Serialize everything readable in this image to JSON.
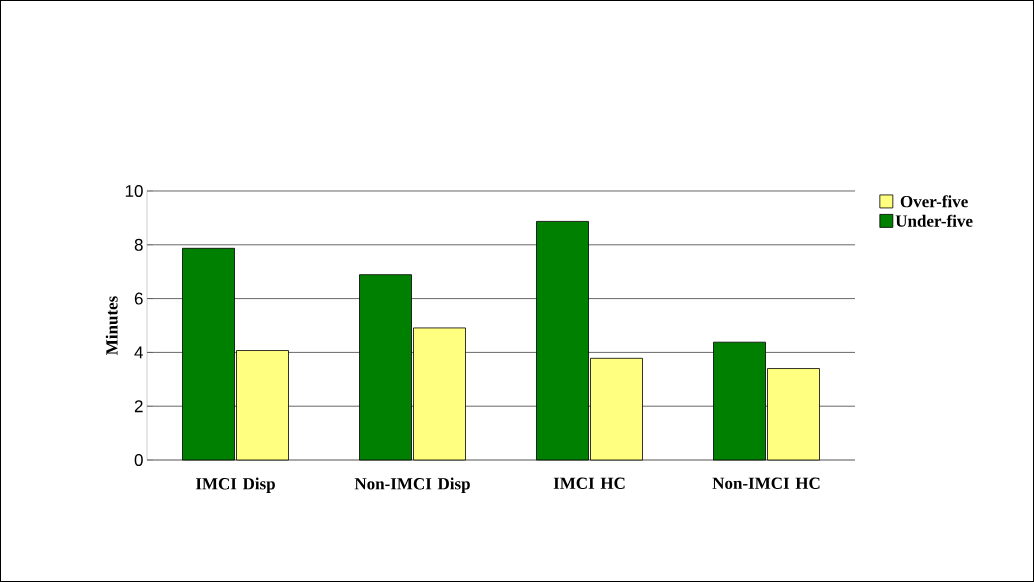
{
  "chart_data": {
    "type": "bar",
    "ylabel": "Minutes",
    "categories": [
      "IMCI Disp",
      "Non-IMCI Disp",
      "IMCI HC",
      "Non-IMCI HC"
    ],
    "series": [
      {
        "name": "Under-five",
        "color": "#008000",
        "values": [
          7.87,
          6.89,
          8.87,
          4.38
        ]
      },
      {
        "name": "Over-five",
        "color": "#ffff80",
        "values": [
          4.07,
          4.91,
          3.78,
          3.4
        ]
      }
    ],
    "ylim": [
      0,
      10
    ],
    "yticks": [
      0,
      2,
      4,
      6,
      8,
      10
    ],
    "grid": "y",
    "legend": "right"
  }
}
